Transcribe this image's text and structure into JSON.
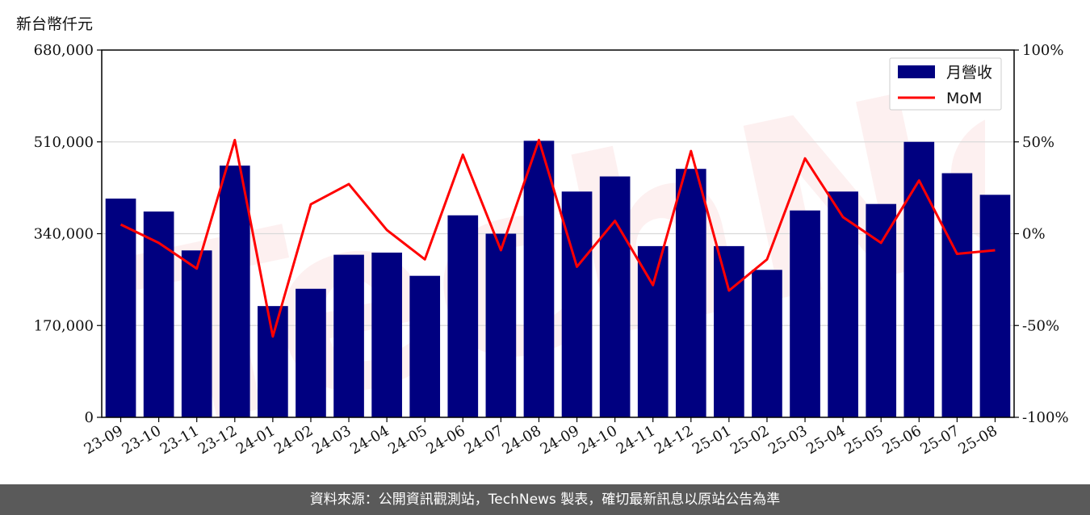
{
  "header": {
    "unit": "新台幣仟元"
  },
  "footer": {
    "source": "資料來源：公開資訊觀測站，TechNews 製表，確切最新訊息以原站公告為準"
  },
  "colors": {
    "bar": "#000080",
    "line": "#ff0000",
    "grid": "#d9d9d9",
    "watermark": "#f6d2d2"
  },
  "chart_data": {
    "type": "bar",
    "categories": [
      "23-09",
      "23-10",
      "23-11",
      "23-12",
      "24-01",
      "24-02",
      "24-03",
      "24-04",
      "24-05",
      "24-06",
      "24-07",
      "24-08",
      "24-09",
      "24-10",
      "24-11",
      "24-12",
      "25-01",
      "25-02",
      "25-03",
      "25-04",
      "25-05",
      "25-06",
      "25-07",
      "25-08"
    ],
    "series": [
      {
        "name": "月營收",
        "type": "bar",
        "axis": "left",
        "values": [
          405000,
          381000,
          309000,
          466000,
          206000,
          238000,
          301000,
          305000,
          262000,
          374000,
          340000,
          512000,
          418000,
          446000,
          317000,
          460000,
          317000,
          273000,
          383000,
          418000,
          395000,
          510000,
          452000,
          412000
        ]
      },
      {
        "name": "MoM",
        "type": "line",
        "axis": "right",
        "values": [
          5,
          -5,
          -19,
          51,
          -56,
          16,
          27,
          2,
          -14,
          43,
          -9,
          51,
          -18,
          7,
          -28,
          45,
          -31,
          -14,
          41,
          9,
          -5,
          29,
          -11,
          -9
        ]
      }
    ],
    "y_left": {
      "ticks": [
        "0",
        "170,000",
        "340,000",
        "510,000",
        "680,000"
      ],
      "ylim": [
        0,
        680000
      ]
    },
    "y_right": {
      "ticks": [
        "-100%",
        "-50%",
        "0%",
        "50%",
        "100%"
      ],
      "ylim": [
        -100,
        100
      ]
    },
    "grid": true,
    "legend": "top-right",
    "watermark": "TechNews"
  }
}
